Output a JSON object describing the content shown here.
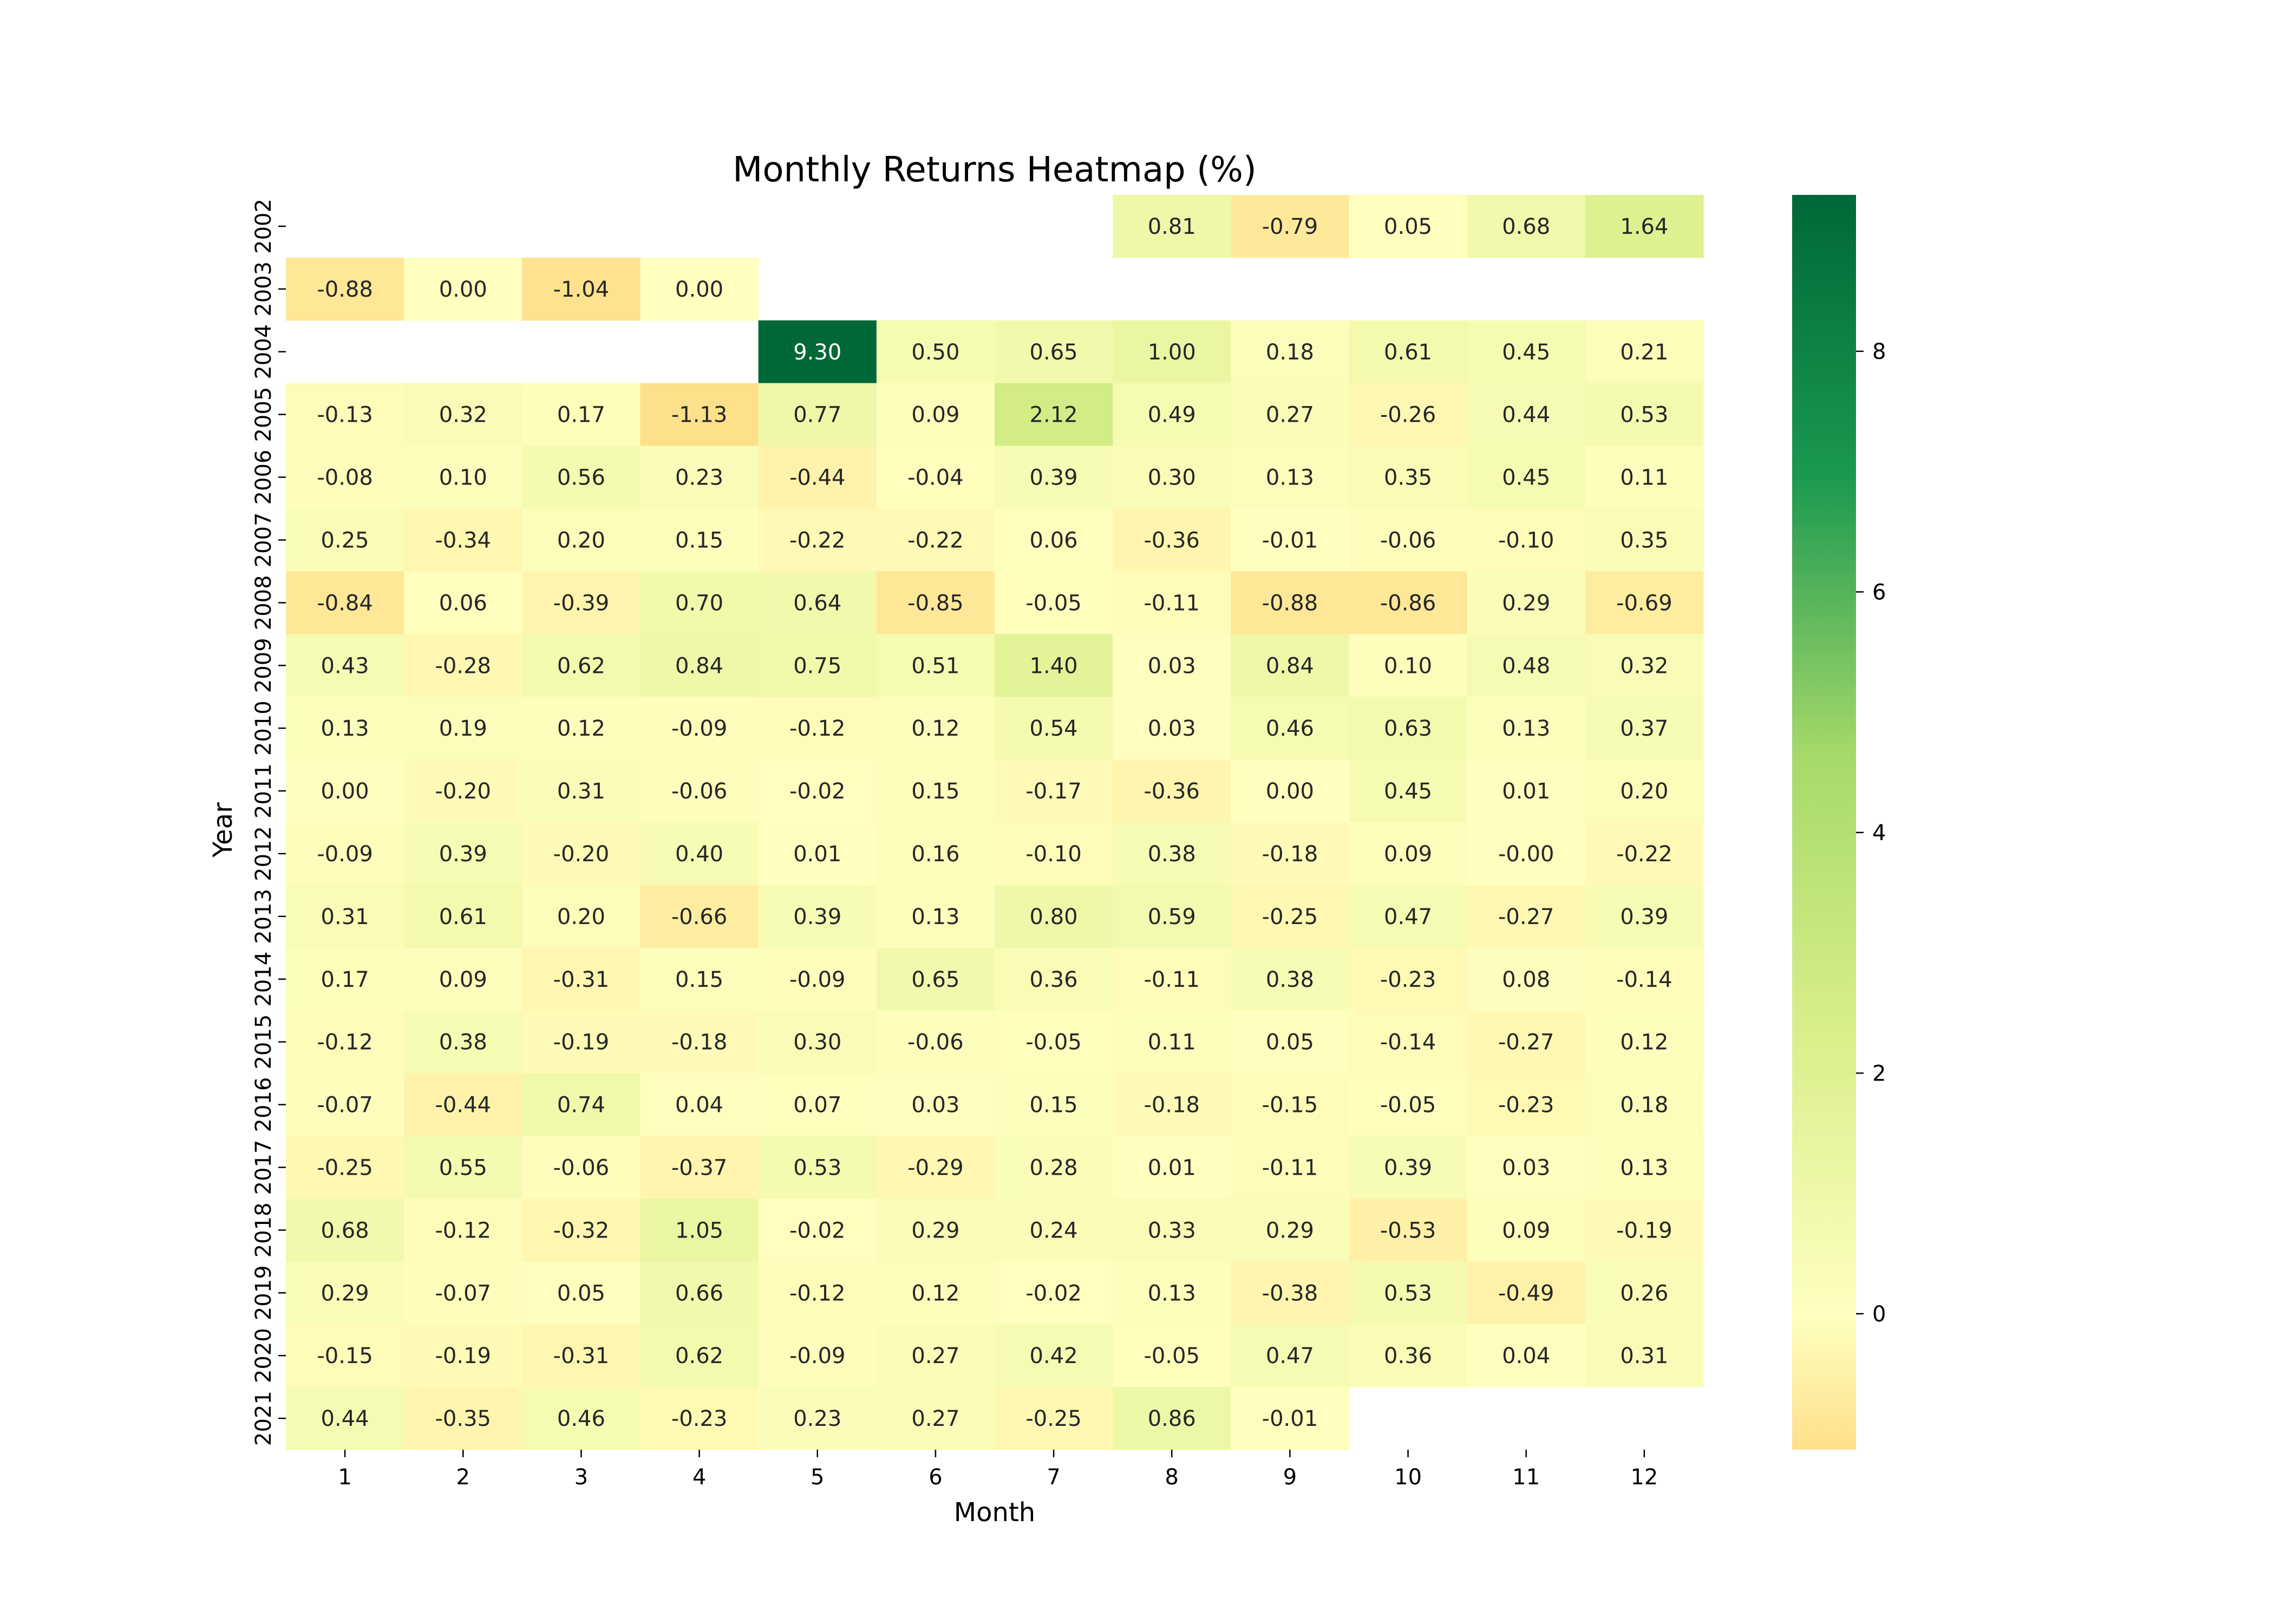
{
  "chart_data": {
    "type": "heatmap",
    "title": "Monthly Returns Heatmap (%)",
    "xlabel": "Month",
    "ylabel": "Year",
    "x": [
      "1",
      "2",
      "3",
      "4",
      "5",
      "6",
      "7",
      "8",
      "9",
      "10",
      "11",
      "12"
    ],
    "y": [
      "2002",
      "2003",
      "2004",
      "2005",
      "2006",
      "2007",
      "2008",
      "2009",
      "2010",
      "2011",
      "2012",
      "2013",
      "2014",
      "2015",
      "2016",
      "2017",
      "2018",
      "2019",
      "2020",
      "2021"
    ],
    "values": [
      [
        null,
        null,
        null,
        null,
        null,
        null,
        null,
        0.81,
        -0.79,
        0.05,
        0.68,
        1.64
      ],
      [
        -0.88,
        0.0,
        -1.04,
        0.0,
        null,
        null,
        null,
        null,
        null,
        null,
        null,
        null
      ],
      [
        null,
        null,
        null,
        null,
        9.3,
        0.5,
        0.65,
        1.0,
        0.18,
        0.61,
        0.45,
        0.21
      ],
      [
        -0.13,
        0.32,
        0.17,
        -1.13,
        0.77,
        0.09,
        2.12,
        0.49,
        0.27,
        -0.26,
        0.44,
        0.53
      ],
      [
        -0.08,
        0.1,
        0.56,
        0.23,
        -0.44,
        -0.04,
        0.39,
        0.3,
        0.13,
        0.35,
        0.45,
        0.11
      ],
      [
        0.25,
        -0.34,
        0.2,
        0.15,
        -0.22,
        -0.22,
        0.06,
        -0.36,
        -0.01,
        -0.06,
        -0.1,
        0.35
      ],
      [
        -0.84,
        0.06,
        -0.39,
        0.7,
        0.64,
        -0.85,
        -0.05,
        -0.11,
        -0.88,
        -0.86,
        0.29,
        -0.69
      ],
      [
        0.43,
        -0.28,
        0.62,
        0.84,
        0.75,
        0.51,
        1.4,
        0.03,
        0.84,
        0.1,
        0.48,
        0.32
      ],
      [
        0.13,
        0.19,
        0.12,
        -0.09,
        -0.12,
        0.12,
        0.54,
        0.03,
        0.46,
        0.63,
        0.13,
        0.37
      ],
      [
        0.0,
        -0.2,
        0.31,
        -0.06,
        -0.02,
        0.15,
        -0.17,
        -0.36,
        0.0,
        0.45,
        0.01,
        0.2
      ],
      [
        -0.09,
        0.39,
        -0.2,
        0.4,
        0.01,
        0.16,
        -0.1,
        0.38,
        -0.18,
        0.09,
        -0.0,
        -0.22
      ],
      [
        0.31,
        0.61,
        0.2,
        -0.66,
        0.39,
        0.13,
        0.8,
        0.59,
        -0.25,
        0.47,
        -0.27,
        0.39
      ],
      [
        0.17,
        0.09,
        -0.31,
        0.15,
        -0.09,
        0.65,
        0.36,
        -0.11,
        0.38,
        -0.23,
        0.08,
        -0.14
      ],
      [
        -0.12,
        0.38,
        -0.19,
        -0.18,
        0.3,
        -0.06,
        -0.05,
        0.11,
        0.05,
        -0.14,
        -0.27,
        0.12
      ],
      [
        -0.07,
        -0.44,
        0.74,
        0.04,
        0.07,
        0.03,
        0.15,
        -0.18,
        -0.15,
        -0.05,
        -0.23,
        0.18
      ],
      [
        -0.25,
        0.55,
        -0.06,
        -0.37,
        0.53,
        -0.29,
        0.28,
        0.01,
        -0.11,
        0.39,
        0.03,
        0.13
      ],
      [
        0.68,
        -0.12,
        -0.32,
        1.05,
        -0.02,
        0.29,
        0.24,
        0.33,
        0.29,
        -0.53,
        0.09,
        -0.19
      ],
      [
        0.29,
        -0.07,
        0.05,
        0.66,
        -0.12,
        0.12,
        -0.02,
        0.13,
        -0.38,
        0.53,
        -0.49,
        0.26
      ],
      [
        -0.15,
        -0.19,
        -0.31,
        0.62,
        -0.09,
        0.27,
        0.42,
        -0.05,
        0.47,
        0.36,
        0.04,
        0.31
      ],
      [
        0.44,
        -0.35,
        0.46,
        -0.23,
        0.23,
        0.27,
        -0.25,
        0.86,
        -0.01,
        null,
        null,
        null
      ]
    ],
    "value_format": "0.00",
    "colorscale": "RdYlGn",
    "color_center": 0,
    "color_range": [
      -1.13,
      9.3
    ],
    "colorbar_ticks": [
      0,
      2,
      4,
      6,
      8
    ],
    "grid": false
  }
}
